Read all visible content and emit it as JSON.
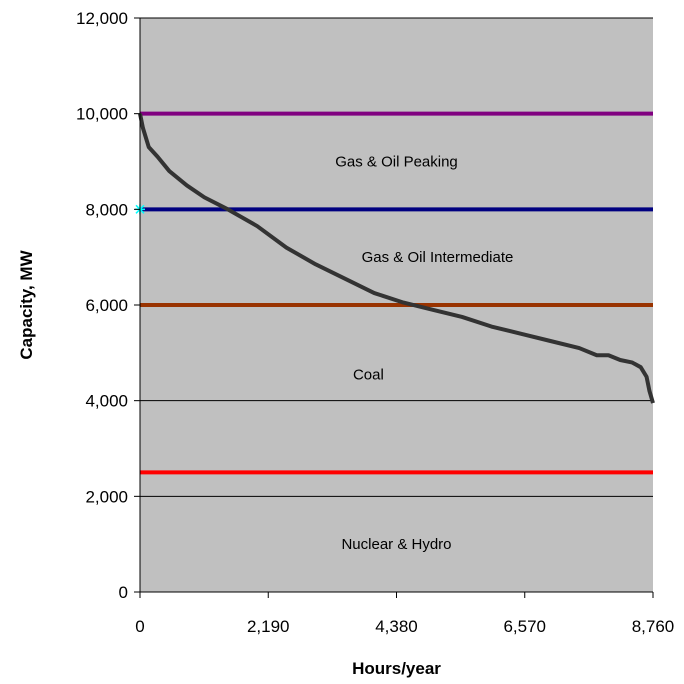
{
  "chart_data": {
    "type": "line",
    "title": "",
    "xlabel": "Hours/year",
    "ylabel": "Capacity, MW",
    "xlim": [
      0,
      8760
    ],
    "ylim": [
      0,
      12000
    ],
    "x_ticks": [
      "0",
      "2,190",
      "4,380",
      "6,570",
      "8,760"
    ],
    "y_ticks": [
      "0",
      "2,000",
      "4,000",
      "6,000",
      "8,000",
      "10,000",
      "12,000"
    ],
    "grid": true,
    "plot_background": "#c0c0c0",
    "load_curve": {
      "color": "#333333",
      "points": [
        [
          0,
          10000
        ],
        [
          50,
          9700
        ],
        [
          150,
          9300
        ],
        [
          300,
          9100
        ],
        [
          500,
          8800
        ],
        [
          800,
          8500
        ],
        [
          1100,
          8250
        ],
        [
          1500,
          8000
        ],
        [
          2000,
          7650
        ],
        [
          2500,
          7200
        ],
        [
          3000,
          6850
        ],
        [
          3500,
          6550
        ],
        [
          4000,
          6250
        ],
        [
          4500,
          6050
        ],
        [
          5000,
          5900
        ],
        [
          5500,
          5750
        ],
        [
          6000,
          5550
        ],
        [
          6500,
          5400
        ],
        [
          7000,
          5250
        ],
        [
          7500,
          5100
        ],
        [
          7800,
          4950
        ],
        [
          8000,
          4950
        ],
        [
          8200,
          4850
        ],
        [
          8400,
          4800
        ],
        [
          8550,
          4700
        ],
        [
          8650,
          4500
        ],
        [
          8700,
          4200
        ],
        [
          8760,
          3950
        ]
      ]
    },
    "capacity_lines": [
      {
        "value": 10000,
        "color": "#800080"
      },
      {
        "value": 8000,
        "color": "#000080"
      },
      {
        "value": 6000,
        "color": "#993300"
      },
      {
        "value": 2500,
        "color": "#ff0000"
      }
    ],
    "marker": {
      "x": 0,
      "y": 8000,
      "color": "#00ffff"
    },
    "region_labels": [
      {
        "text": "Gas & Oil Peaking",
        "x": 4380,
        "y": 9000
      },
      {
        "text": "Gas & Oil Intermediate",
        "x": 5080,
        "y": 7000
      },
      {
        "text": "Coal",
        "x": 3900,
        "y": 4550
      },
      {
        "text": "Nuclear & Hydro",
        "x": 4380,
        "y": 1000
      }
    ]
  }
}
